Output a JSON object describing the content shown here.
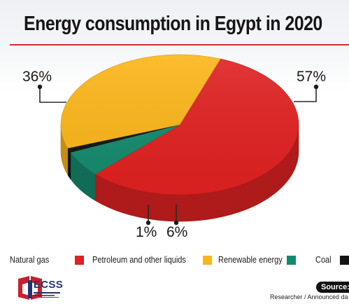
{
  "colors": {
    "natural_gas": "#e02121",
    "petroleum": "#fbb518",
    "renewable": "#148a6c",
    "coal": "#141414",
    "title_rule": "#d42a2a",
    "logo_red": "#c8202d",
    "logo_blue": "#23346e"
  },
  "chart_data": {
    "type": "pie",
    "title": "Energy consumption in Egypt in 2020",
    "slices": [
      {
        "name": "Natural gas",
        "value": 57,
        "label": "57%",
        "color": "#e02121"
      },
      {
        "name": "Renewable energy",
        "value": 6,
        "label": "6%",
        "color": "#148a6c"
      },
      {
        "name": "Coal",
        "value": 1,
        "label": "1%",
        "color": "#141414"
      },
      {
        "name": "Petroleum and other liquids",
        "value": 36,
        "label": "36%",
        "color": "#fbb518"
      }
    ],
    "legend": [
      "Natural gas",
      "Petroleum and other liquids",
      "Renewable energy",
      "Coal"
    ],
    "legend_position": "bottom"
  },
  "footer": {
    "logo": "ECSS",
    "source_label": "Source:",
    "source_text": "Researcher / Announced da"
  }
}
